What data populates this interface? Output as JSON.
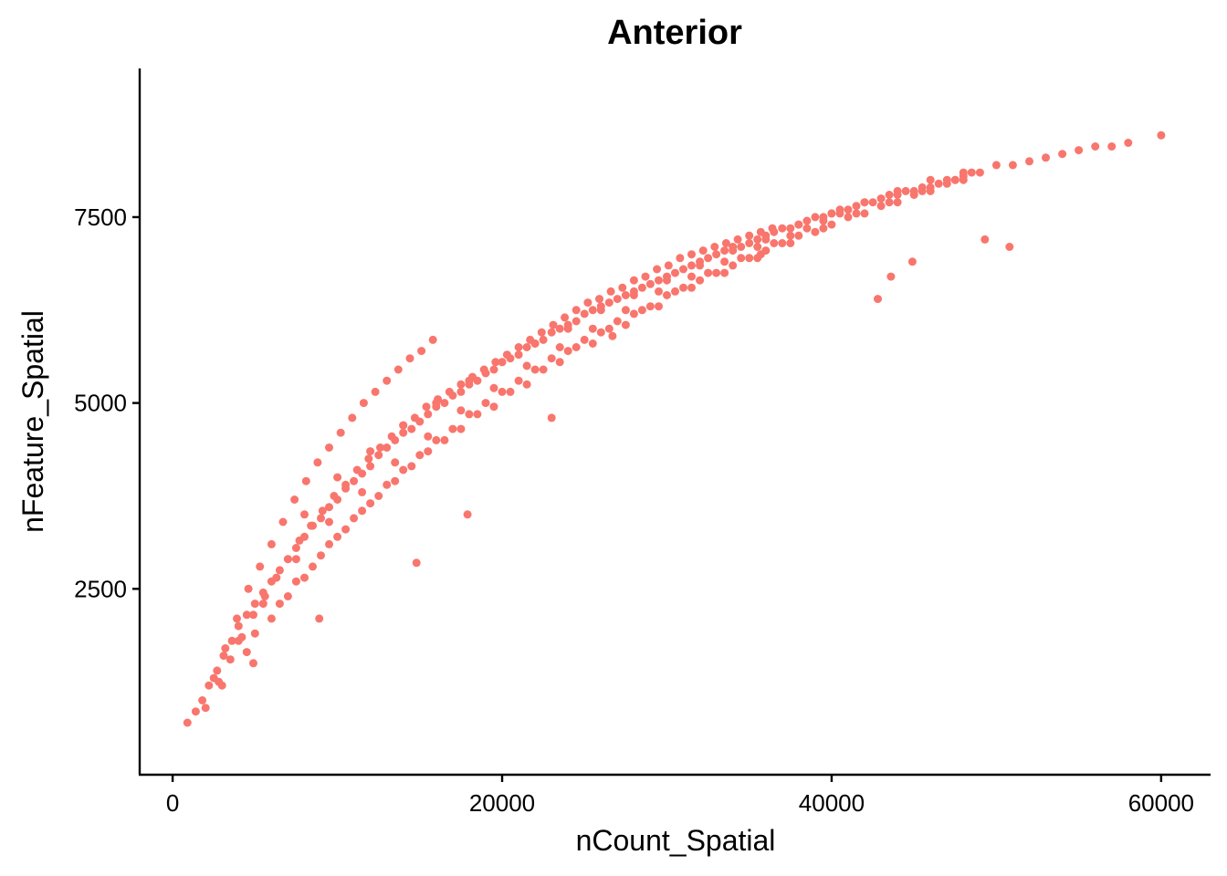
{
  "chart_data": {
    "type": "scatter",
    "title": "Anterior",
    "xlabel": "nCount_Spatial",
    "ylabel": "nFeature_Spatial",
    "xlim": [
      -2000,
      63000
    ],
    "ylim": [
      0,
      9500
    ],
    "xticks": [
      0,
      20000,
      40000,
      60000
    ],
    "xtick_labels": [
      "0",
      "20000",
      "40000",
      "60000"
    ],
    "yticks": [
      2500,
      5000,
      7500
    ],
    "ytick_labels": [
      "2500",
      "5000",
      "7500"
    ],
    "point_color": "#F8766D",
    "axis_color": "#000000",
    "grid": false,
    "legend": "none",
    "series": [
      {
        "x": [
          900,
          1400,
          1800,
          2200,
          2700,
          3100,
          3600,
          4000,
          4500,
          5000,
          5500,
          6000,
          6500,
          7000,
          7500,
          8000,
          8500,
          9000,
          9500,
          10000,
          10500,
          11000,
          11500,
          12000,
          12500,
          13000,
          13500,
          14000,
          14500,
          15000,
          15500,
          16000,
          16500,
          17000,
          17500,
          18000,
          18500,
          19000,
          19500,
          20000,
          20500,
          21000,
          21500,
          22000,
          22500,
          23000,
          23500,
          24000,
          24500,
          25000,
          25500,
          26000,
          26500,
          27000,
          27500,
          28000,
          28500,
          29000,
          29500,
          30000,
          30500,
          31000,
          31500,
          32000,
          32500,
          33000,
          33500,
          34000,
          34500,
          35000,
          35500,
          36000,
          36500,
          37000,
          37500,
          38000,
          38500,
          39000,
          39500,
          40000,
          40500,
          41000,
          41500,
          42000,
          42500,
          43000,
          43500,
          44000,
          44500,
          45000,
          45500,
          46000,
          46500,
          47000,
          47500,
          48000,
          48500,
          49000,
          50000,
          51000,
          52000,
          53000,
          54000,
          55000,
          56000,
          57000,
          58000,
          60000,
          2500,
          3200,
          3900,
          4600,
          5300,
          6000,
          6700,
          7400,
          8100,
          8800,
          9500,
          10200,
          10900,
          11600,
          12300,
          13000,
          13700,
          14400,
          15100,
          15800,
          2000,
          2800,
          3500,
          4200,
          4900,
          5600,
          6300,
          7000,
          7700,
          8400,
          9100,
          9800,
          10500,
          11200,
          11900,
          12600,
          13300,
          14000,
          14700,
          15400,
          16100,
          16800,
          17500,
          18200,
          18900,
          19600,
          20300,
          21000,
          21700,
          22400,
          23100,
          23800,
          24500,
          25200,
          25900,
          26600,
          27300,
          28000,
          28700,
          29400,
          30100,
          30800,
          31500,
          32200,
          32900,
          33600,
          34300,
          35000,
          35700,
          36400,
          6000,
          7000,
          8000,
          9000,
          10000,
          11000,
          12000,
          13000,
          14000,
          15000,
          16000,
          17000,
          18000,
          19000,
          20000,
          21000,
          22000,
          23000,
          24000,
          25000,
          26000,
          27000,
          28000,
          29000,
          30000,
          31000,
          32000,
          33000,
          34000,
          35000,
          36000,
          37000,
          38000,
          39000,
          40000,
          41000,
          42000,
          43000,
          44000,
          45000,
          46000,
          47000,
          48000,
          3000,
          4500,
          6500,
          8500,
          10500,
          12500,
          14500,
          16500,
          18500,
          20500,
          22500,
          24500,
          26500,
          28500,
          30500,
          32500,
          34500,
          36500,
          38500,
          40500,
          5000,
          7500,
          9500,
          11500,
          13500,
          15500,
          17500,
          19500,
          21500,
          23500,
          25500,
          27500,
          29500,
          31500,
          33500,
          35500,
          37500,
          39500,
          41500,
          43500,
          45500,
          47500,
          4000,
          5500,
          7500,
          9500,
          11500,
          13500,
          15500,
          17500,
          19500,
          21500,
          23500,
          25500,
          27500,
          29500,
          31500,
          33500,
          35500,
          37500,
          39500,
          8000,
          10000,
          12000,
          14000,
          16000,
          18000,
          20000,
          22000,
          24000,
          26000,
          28000,
          30000,
          32000,
          34000,
          36000,
          38000,
          40000,
          42000,
          44000,
          46000,
          48000,
          17900,
          14800,
          42800,
          43600,
          44900,
          49300,
          50800,
          23000,
          26700,
          35700,
          4900,
          8900
        ],
        "y": [
          700,
          850,
          1000,
          1200,
          1400,
          1600,
          1800,
          2000,
          2150,
          2300,
          2450,
          2600,
          2750,
          2900,
          3050,
          3200,
          3350,
          3450,
          3600,
          3700,
          3850,
          3950,
          4050,
          4150,
          4300,
          4400,
          4500,
          4600,
          4650,
          4750,
          4850,
          4950,
          5000,
          5100,
          5150,
          5250,
          5300,
          5400,
          5450,
          5550,
          5600,
          5650,
          5750,
          5800,
          5850,
          5950,
          6000,
          6050,
          6100,
          6200,
          6250,
          6300,
          6350,
          6400,
          6450,
          6500,
          6550,
          6600,
          6650,
          6700,
          6750,
          6800,
          6850,
          6900,
          6950,
          7000,
          7050,
          7100,
          7100,
          7150,
          7200,
          7250,
          7300,
          7350,
          7350,
          7400,
          7450,
          7500,
          7500,
          7550,
          7600,
          7600,
          7650,
          7700,
          7700,
          7750,
          7800,
          7800,
          7850,
          7850,
          7900,
          7900,
          7950,
          8000,
          8000,
          8050,
          8100,
          8100,
          8200,
          8200,
          8250,
          8300,
          8350,
          8400,
          8450,
          8450,
          8500,
          8600,
          1300,
          1700,
          2100,
          2500,
          2800,
          3100,
          3400,
          3700,
          3950,
          4200,
          4400,
          4600,
          4800,
          5000,
          5150,
          5300,
          5450,
          5600,
          5700,
          5850,
          900,
          1250,
          1550,
          1850,
          2150,
          2400,
          2650,
          2900,
          3150,
          3350,
          3550,
          3750,
          3900,
          4100,
          4250,
          4400,
          4550,
          4700,
          4800,
          4950,
          5050,
          5150,
          5250,
          5350,
          5450,
          5550,
          5650,
          5750,
          5850,
          5950,
          6050,
          6150,
          6250,
          6350,
          6400,
          6500,
          6550,
          6650,
          6700,
          6800,
          6850,
          6950,
          7000,
          7050,
          7100,
          7150,
          7200,
          7250,
          7300,
          7350,
          2100,
          2400,
          2650,
          2950,
          3200,
          3450,
          3650,
          3900,
          4100,
          4300,
          4500,
          4650,
          4850,
          5000,
          5150,
          5300,
          5450,
          5600,
          5700,
          5850,
          5950,
          6100,
          6200,
          6300,
          6450,
          6550,
          6650,
          6750,
          6850,
          6950,
          7050,
          7150,
          7250,
          7300,
          7400,
          7500,
          7550,
          7650,
          7700,
          7800,
          7850,
          7950,
          8000,
          1200,
          1650,
          2300,
          2800,
          3300,
          3750,
          4150,
          4500,
          4850,
          5150,
          5450,
          5750,
          6000,
          6250,
          6500,
          6750,
          6950,
          7150,
          7350,
          7550,
          1900,
          2600,
          3100,
          3550,
          3950,
          4350,
          4650,
          4950,
          5250,
          5550,
          5800,
          6050,
          6300,
          6550,
          6750,
          6950,
          7150,
          7350,
          7550,
          7700,
          7850,
          8000,
          1800,
          2300,
          2900,
          3400,
          3800,
          4200,
          4550,
          4900,
          5200,
          5500,
          5750,
          6000,
          6250,
          6500,
          6700,
          6900,
          7100,
          7250,
          7450,
          3500,
          4000,
          4350,
          4700,
          5000,
          5300,
          5550,
          5800,
          6000,
          6250,
          6450,
          6650,
          6850,
          7050,
          7200,
          7400,
          7550,
          7700,
          7850,
          8000,
          8100,
          3500,
          2850,
          6400,
          6700,
          6900,
          7200,
          7100,
          4800,
          5900,
          7000,
          1500,
          2100
        ]
      }
    ]
  }
}
